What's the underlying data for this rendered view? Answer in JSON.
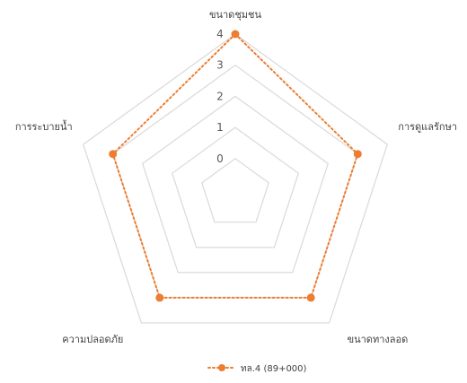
{
  "chart_data": {
    "type": "radar",
    "categories": [
      "ขนาดชุมชน",
      "การดูแลรักษา",
      "ขนาดทางลอด",
      "ความปลอดภัย",
      "การระบายน้ำ"
    ],
    "series": [
      {
        "name": "ทล.4 (89+000)",
        "values": [
          4,
          3,
          3,
          3,
          3
        ],
        "color": "#ED7D31",
        "line_style": "dotted",
        "marker": "circle"
      }
    ],
    "rlim": [
      0,
      4
    ],
    "ticks": [
      0,
      1,
      2,
      3,
      4
    ],
    "tick_labels": [
      "0",
      "1",
      "2",
      "3",
      "4"
    ],
    "grid": true,
    "grid_color": "#d9d9d9",
    "legend_position": "bottom"
  }
}
